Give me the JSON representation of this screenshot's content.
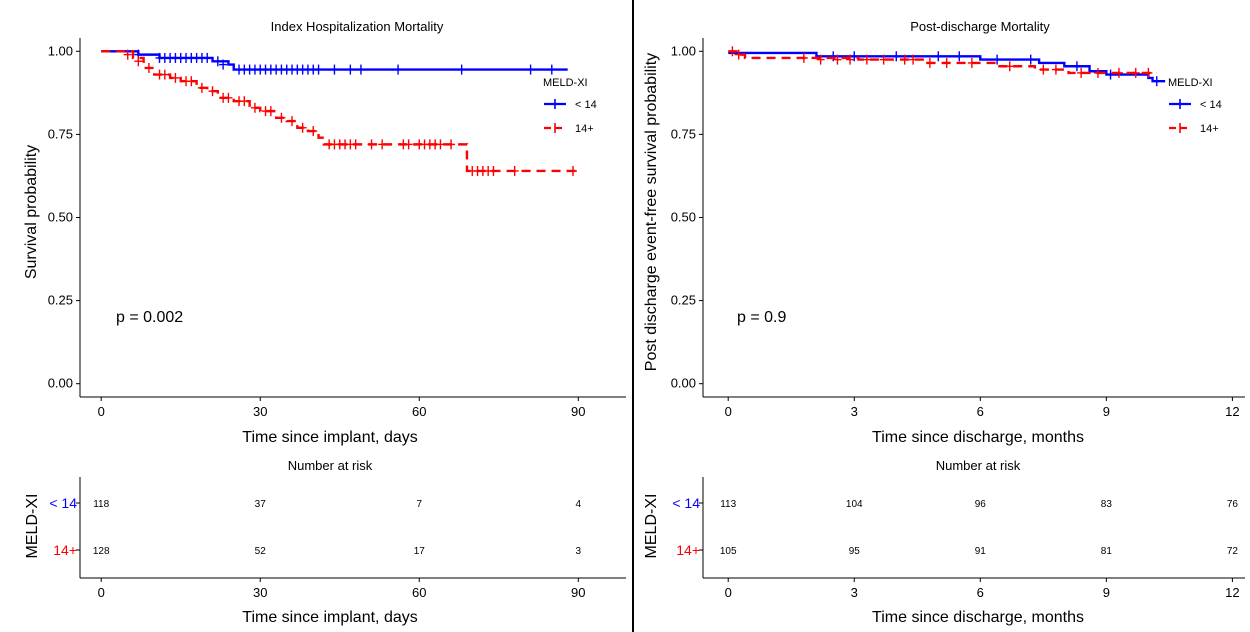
{
  "colors": {
    "low": "#0000ff",
    "high": "#ff0000",
    "axis": "#000000"
  },
  "left": {
    "chart_data": {
      "type": "line",
      "title": "Index Hospitalization Mortality",
      "xlabel": "Time since implant, days",
      "ylabel": "Survival probability",
      "xlim": [
        -4,
        99
      ],
      "ylim": [
        -0.04,
        1.04
      ],
      "xticks": [
        0,
        30,
        60,
        90
      ],
      "xtick_labels": [
        "0",
        "30",
        "60",
        "90"
      ],
      "yticks": [
        0,
        0.25,
        0.5,
        0.75,
        1
      ],
      "ytick_labels": [
        "0.00",
        "0.25",
        "0.50",
        "0.75",
        "1.00"
      ],
      "grid": false,
      "pvalue": "p = 0.002",
      "legend": {
        "title": "MELD-XI",
        "labels": [
          "< 14",
          "14+"
        ],
        "position": "right"
      },
      "series": [
        {
          "name": "< 14",
          "color": "#0000ff",
          "dash": "solid",
          "steps": [
            [
              0,
              1.0
            ],
            [
              5,
              1.0
            ],
            [
              7,
              0.99
            ],
            [
              11,
              0.98
            ],
            [
              20,
              0.98
            ],
            [
              21,
              0.97
            ],
            [
              24,
              0.96
            ],
            [
              25,
              0.945
            ],
            [
              88,
              0.945
            ]
          ],
          "censors": [
            [
              7,
              0.99
            ],
            [
              11,
              0.98
            ],
            [
              12,
              0.98
            ],
            [
              13,
              0.98
            ],
            [
              14,
              0.98
            ],
            [
              15,
              0.98
            ],
            [
              16,
              0.98
            ],
            [
              17,
              0.98
            ],
            [
              18,
              0.98
            ],
            [
              19,
              0.98
            ],
            [
              20,
              0.98
            ],
            [
              22,
              0.97
            ],
            [
              23,
              0.96
            ],
            [
              26,
              0.945
            ],
            [
              27,
              0.945
            ],
            [
              28,
              0.945
            ],
            [
              29,
              0.945
            ],
            [
              30,
              0.945
            ],
            [
              31,
              0.945
            ],
            [
              32,
              0.945
            ],
            [
              33,
              0.945
            ],
            [
              34,
              0.945
            ],
            [
              35,
              0.945
            ],
            [
              36,
              0.945
            ],
            [
              37,
              0.945
            ],
            [
              38,
              0.945
            ],
            [
              39,
              0.945
            ],
            [
              40,
              0.945
            ],
            [
              41,
              0.945
            ],
            [
              44,
              0.945
            ],
            [
              47,
              0.945
            ],
            [
              49,
              0.945
            ],
            [
              56,
              0.945
            ],
            [
              68,
              0.945
            ],
            [
              81,
              0.945
            ],
            [
              85,
              0.945
            ]
          ]
        },
        {
          "name": "14+",
          "color": "#ff0000",
          "dash": "dashed",
          "steps": [
            [
              0,
              1.0
            ],
            [
              4,
              1.0
            ],
            [
              6,
              0.98
            ],
            [
              8,
              0.95
            ],
            [
              10,
              0.93
            ],
            [
              13,
              0.92
            ],
            [
              15,
              0.91
            ],
            [
              18,
              0.89
            ],
            [
              20,
              0.88
            ],
            [
              22,
              0.86
            ],
            [
              25,
              0.85
            ],
            [
              28,
              0.83
            ],
            [
              30,
              0.82
            ],
            [
              33,
              0.8
            ],
            [
              35,
              0.79
            ],
            [
              37,
              0.77
            ],
            [
              39,
              0.76
            ],
            [
              41,
              0.74
            ],
            [
              42,
              0.72
            ],
            [
              68,
              0.72
            ],
            [
              69,
              0.64
            ],
            [
              90,
              0.64
            ]
          ],
          "censors": [
            [
              5,
              0.99
            ],
            [
              7,
              0.97
            ],
            [
              9,
              0.95
            ],
            [
              11,
              0.93
            ],
            [
              12,
              0.93
            ],
            [
              14,
              0.92
            ],
            [
              16,
              0.91
            ],
            [
              17,
              0.91
            ],
            [
              19,
              0.89
            ],
            [
              21,
              0.88
            ],
            [
              23,
              0.86
            ],
            [
              24,
              0.86
            ],
            [
              26,
              0.85
            ],
            [
              27,
              0.85
            ],
            [
              29,
              0.83
            ],
            [
              31,
              0.82
            ],
            [
              32,
              0.82
            ],
            [
              34,
              0.8
            ],
            [
              36,
              0.79
            ],
            [
              38,
              0.77
            ],
            [
              40,
              0.76
            ],
            [
              43,
              0.72
            ],
            [
              44,
              0.72
            ],
            [
              45,
              0.72
            ],
            [
              46,
              0.72
            ],
            [
              47,
              0.72
            ],
            [
              48,
              0.72
            ],
            [
              51,
              0.72
            ],
            [
              53,
              0.72
            ],
            [
              57,
              0.72
            ],
            [
              58,
              0.72
            ],
            [
              60,
              0.72
            ],
            [
              61,
              0.72
            ],
            [
              62,
              0.72
            ],
            [
              63,
              0.72
            ],
            [
              64,
              0.72
            ],
            [
              66,
              0.72
            ],
            [
              70,
              0.64
            ],
            [
              71,
              0.64
            ],
            [
              72,
              0.64
            ],
            [
              73,
              0.64
            ],
            [
              74,
              0.64
            ],
            [
              78,
              0.64
            ],
            [
              89,
              0.64
            ]
          ]
        }
      ]
    },
    "risk_table": {
      "title": "Number at risk",
      "ylabel": "MELD-XI",
      "xlabel": "Time since implant, days",
      "times": [
        0,
        30,
        60,
        90
      ],
      "tick_labels": [
        "0",
        "30",
        "60",
        "90"
      ],
      "rows": [
        {
          "label": "< 14",
          "color": "#0000ff",
          "values": [
            "118",
            "37",
            "7",
            "4"
          ]
        },
        {
          "label": "14+",
          "color": "#ff0000",
          "values": [
            "128",
            "52",
            "17",
            "3"
          ]
        }
      ]
    }
  },
  "right": {
    "chart_data": {
      "type": "line",
      "title": "Post-discharge Mortality",
      "xlabel": "Time since discharge, months",
      "ylabel": "Post discharge event-free survival probability",
      "xlim": [
        -0.6,
        12.3
      ],
      "ylim": [
        -0.04,
        1.04
      ],
      "xticks": [
        0,
        3,
        6,
        9,
        12
      ],
      "xtick_labels": [
        "0",
        "3",
        "6",
        "9",
        "12"
      ],
      "yticks": [
        0,
        0.25,
        0.5,
        0.75,
        1
      ],
      "ytick_labels": [
        "0.00",
        "0.25",
        "0.50",
        "0.75",
        "1.00"
      ],
      "grid": false,
      "pvalue": "p = 0.9",
      "legend": {
        "title": "MELD-XI",
        "labels": [
          "< 14",
          "14+"
        ],
        "position": "right"
      },
      "series": [
        {
          "name": "< 14",
          "color": "#0000ff",
          "dash": "solid",
          "steps": [
            [
              0,
              0.995
            ],
            [
              2,
              0.995
            ],
            [
              2.1,
              0.985
            ],
            [
              5.9,
              0.985
            ],
            [
              6,
              0.975
            ],
            [
              7.3,
              0.975
            ],
            [
              7.4,
              0.965
            ],
            [
              7.9,
              0.965
            ],
            [
              8,
              0.955
            ],
            [
              8.5,
              0.955
            ],
            [
              8.6,
              0.94
            ],
            [
              8.9,
              0.94
            ],
            [
              9,
              0.93
            ],
            [
              9.8,
              0.93
            ],
            [
              10,
              0.92
            ],
            [
              10.1,
              0.91
            ],
            [
              10.4,
              0.91
            ]
          ],
          "censors": [
            [
              2.5,
              0.985
            ],
            [
              3,
              0.985
            ],
            [
              4,
              0.985
            ],
            [
              5,
              0.985
            ],
            [
              5.5,
              0.985
            ],
            [
              6.4,
              0.975
            ],
            [
              7.2,
              0.975
            ],
            [
              8.3,
              0.955
            ],
            [
              9.1,
              0.93
            ],
            [
              10.2,
              0.91
            ]
          ]
        },
        {
          "name": "14+",
          "color": "#ff0000",
          "dash": "dashed",
          "steps": [
            [
              0,
              1.0
            ],
            [
              0.2,
              0.99
            ],
            [
              0.4,
              0.98
            ],
            [
              3,
              0.98
            ],
            [
              3.1,
              0.975
            ],
            [
              4.6,
              0.975
            ],
            [
              4.7,
              0.965
            ],
            [
              6.3,
              0.965
            ],
            [
              6.4,
              0.955
            ],
            [
              7.2,
              0.955
            ],
            [
              7.3,
              0.945
            ],
            [
              8,
              0.945
            ],
            [
              8.1,
              0.935
            ],
            [
              10.2,
              0.935
            ]
          ],
          "censors": [
            [
              0.1,
              1.0
            ],
            [
              0.25,
              0.99
            ],
            [
              1.8,
              0.98
            ],
            [
              2.2,
              0.975
            ],
            [
              2.6,
              0.975
            ],
            [
              2.9,
              0.975
            ],
            [
              3.3,
              0.975
            ],
            [
              3.7,
              0.975
            ],
            [
              4.2,
              0.975
            ],
            [
              4.4,
              0.975
            ],
            [
              4.8,
              0.965
            ],
            [
              5.2,
              0.965
            ],
            [
              5.8,
              0.965
            ],
            [
              6.7,
              0.955
            ],
            [
              7.5,
              0.945
            ],
            [
              7.8,
              0.945
            ],
            [
              8.4,
              0.935
            ],
            [
              8.8,
              0.935
            ],
            [
              9.3,
              0.935
            ],
            [
              9.7,
              0.935
            ],
            [
              10,
              0.935
            ]
          ]
        }
      ]
    },
    "risk_table": {
      "title": "Number at risk",
      "ylabel": "MELD-XI",
      "xlabel": "Time since discharge, months",
      "times": [
        0,
        3,
        6,
        9,
        12
      ],
      "tick_labels": [
        "0",
        "3",
        "6",
        "9",
        "12"
      ],
      "rows": [
        {
          "label": "< 14",
          "color": "#0000ff",
          "values": [
            "113",
            "104",
            "96",
            "83",
            "76"
          ]
        },
        {
          "label": "14+",
          "color": "#ff0000",
          "values": [
            "105",
            "95",
            "91",
            "81",
            "72"
          ]
        }
      ]
    }
  }
}
